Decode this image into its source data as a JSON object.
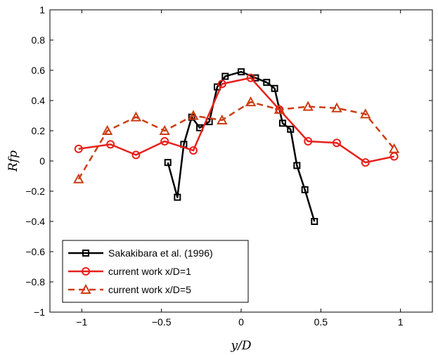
{
  "chart_data": {
    "type": "line",
    "xlabel": "y/D",
    "ylabel": "Rfp",
    "xlim": [
      -1.2,
      1.2
    ],
    "ylim": [
      -1,
      1
    ],
    "xticks": [
      -1,
      -0.5,
      0,
      0.5,
      1
    ],
    "xtick_labels": [
      "−1",
      "−0.5",
      "0",
      "0.5",
      "1"
    ],
    "yticks": [
      1,
      0.8,
      0.6,
      0.4,
      0.2,
      0,
      -0.2,
      -0.4,
      -0.6,
      -0.8,
      -1
    ],
    "ytick_labels": [
      "1",
      "0.8",
      "0.6",
      "0.4",
      "0.2",
      "0",
      "−0.2",
      "−0.4",
      "−0.6",
      "−0.8",
      "−1"
    ],
    "grid": false,
    "legend_position": "bottom-left",
    "series": [
      {
        "name": "Sakakibara et al. (1996)",
        "color": "#000000",
        "marker": "square",
        "dash": "solid",
        "x": [
          -0.46,
          -0.4,
          -0.36,
          -0.31,
          -0.26,
          -0.2,
          -0.15,
          -0.1,
          0.0,
          0.09,
          0.16,
          0.21,
          0.26,
          0.31,
          0.35,
          0.4,
          0.46
        ],
        "y": [
          -0.01,
          -0.24,
          0.11,
          0.29,
          0.22,
          0.26,
          0.49,
          0.56,
          0.59,
          0.55,
          0.52,
          0.48,
          0.25,
          0.21,
          -0.03,
          -0.19,
          -0.4
        ]
      },
      {
        "name": "current work x/D=1",
        "color": "#e8201b",
        "marker": "circle",
        "dash": "solid",
        "x": [
          -1.02,
          -0.82,
          -0.66,
          -0.48,
          -0.3,
          -0.12,
          0.06,
          0.24,
          0.42,
          0.6,
          0.78,
          0.96
        ],
        "y": [
          0.08,
          0.11,
          0.04,
          0.13,
          0.07,
          0.51,
          0.55,
          0.34,
          0.13,
          0.12,
          -0.01,
          0.03
        ]
      },
      {
        "name": "current work x/D=5",
        "color": "#cc3d14",
        "marker": "triangle",
        "dash": "dashed",
        "x": [
          -1.02,
          -0.84,
          -0.66,
          -0.48,
          -0.3,
          -0.12,
          0.06,
          0.24,
          0.42,
          0.6,
          0.78,
          0.96
        ],
        "y": [
          -0.12,
          0.2,
          0.29,
          0.2,
          0.3,
          0.27,
          0.39,
          0.34,
          0.36,
          0.35,
          0.31,
          0.08
        ]
      }
    ]
  }
}
